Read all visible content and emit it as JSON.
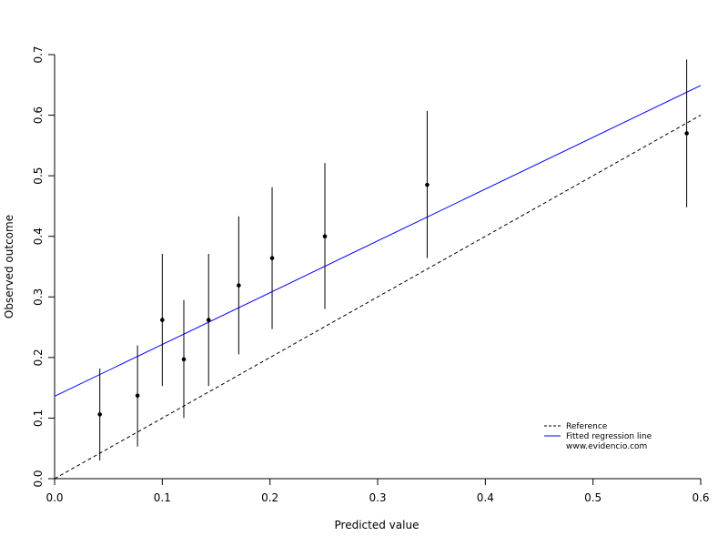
{
  "chart_data": {
    "type": "scatter",
    "title": "",
    "xlabel": "Predicted value",
    "ylabel": "Observed outcome",
    "xlim": [
      0,
      0.6
    ],
    "ylim": [
      0,
      0.7
    ],
    "x_ticks": [
      "0.0",
      "0.1",
      "0.2",
      "0.3",
      "0.4",
      "0.5",
      "0.6"
    ],
    "y_ticks": [
      "0.0",
      "0.1",
      "0.2",
      "0.3",
      "0.4",
      "0.5",
      "0.6",
      "0.7"
    ],
    "grid": false,
    "points": [
      {
        "x": 0.042,
        "y": 0.106,
        "lower": 0.03,
        "upper": 0.182
      },
      {
        "x": 0.077,
        "y": 0.137,
        "lower": 0.053,
        "upper": 0.22
      },
      {
        "x": 0.1,
        "y": 0.262,
        "lower": 0.153,
        "upper": 0.371
      },
      {
        "x": 0.12,
        "y": 0.197,
        "lower": 0.1,
        "upper": 0.295
      },
      {
        "x": 0.143,
        "y": 0.262,
        "lower": 0.153,
        "upper": 0.371
      },
      {
        "x": 0.171,
        "y": 0.319,
        "lower": 0.205,
        "upper": 0.433
      },
      {
        "x": 0.202,
        "y": 0.364,
        "lower": 0.247,
        "upper": 0.481
      },
      {
        "x": 0.251,
        "y": 0.4,
        "lower": 0.28,
        "upper": 0.521
      },
      {
        "x": 0.346,
        "y": 0.485,
        "lower": 0.364,
        "upper": 0.607
      },
      {
        "x": 0.587,
        "y": 0.57,
        "lower": 0.448,
        "upper": 0.692
      }
    ],
    "reference_line": {
      "x": [
        0,
        0.6
      ],
      "y": [
        0,
        0.6
      ],
      "color": "#000000",
      "style": "dashed"
    },
    "regression_line": {
      "x": [
        0,
        0.6
      ],
      "y": [
        0.136,
        0.649
      ],
      "color": "#0000ff",
      "style": "solid"
    },
    "legend": {
      "placement": "bottom-right",
      "entries": [
        {
          "label": "Reference",
          "color": "#000000",
          "style": "dashed"
        },
        {
          "label": "Fitted regression line",
          "color": "#0000ff",
          "style": "solid"
        },
        {
          "label": "www.evidencio.com",
          "color": "",
          "style": "none"
        }
      ]
    }
  }
}
